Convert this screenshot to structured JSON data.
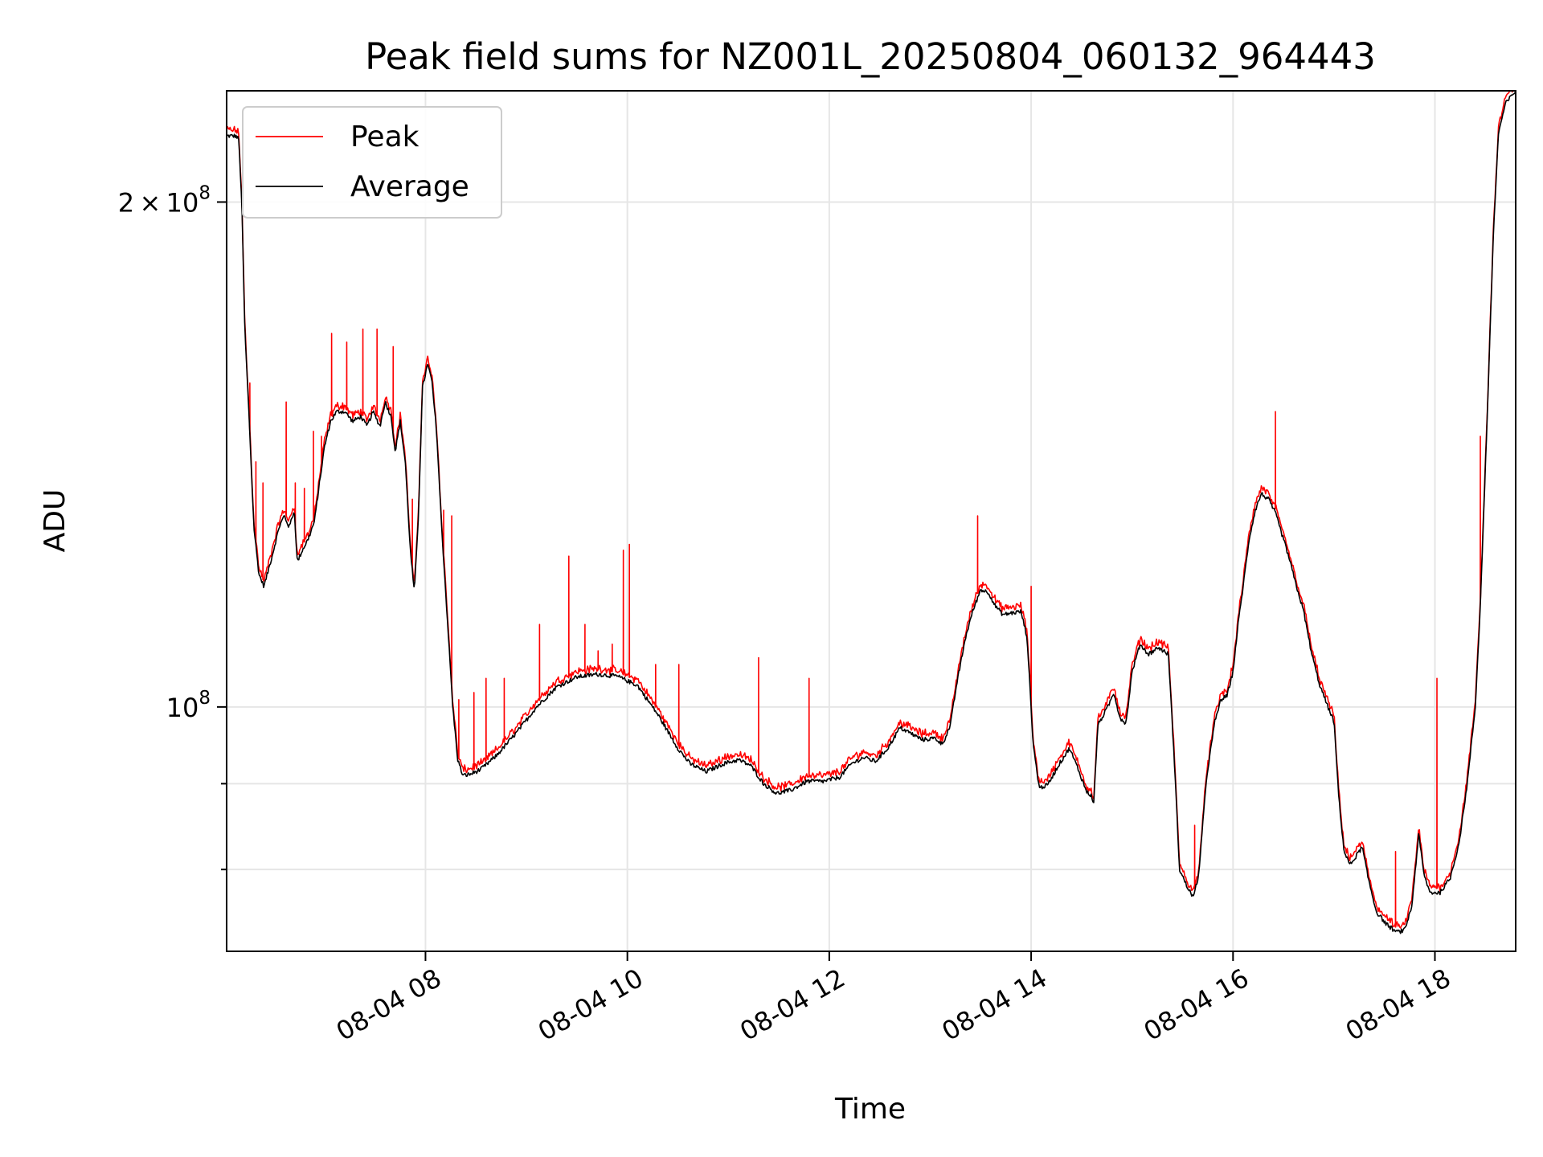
{
  "chart_data": {
    "type": "line",
    "title": "Peak field sums for NZ001L_20250804_060132_964443",
    "xlabel": "Time",
    "ylabel": "ADU",
    "x_tick_labels": [
      "08-04 08",
      "08-04 10",
      "08-04 12",
      "08-04 14",
      "08-04 16",
      "08-04 18"
    ],
    "x_tick_hours": [
      8,
      10,
      12,
      14,
      16,
      18
    ],
    "xlim_hours": [
      6.03,
      18.8
    ],
    "y_scale": "log",
    "ylim": [
      71500000,
      233000000
    ],
    "y_tick_values": [
      100000000,
      200000000
    ],
    "y_tick_labels": [
      "10^8",
      "2×10^8"
    ],
    "y_tick_mantissa": [
      "",
      "2"
    ],
    "y_tick_base": [
      "10",
      "10"
    ],
    "y_tick_exp": [
      "8",
      "8"
    ],
    "y_minor_ticks": [
      80000000,
      90000000
    ],
    "grid": true,
    "legend_position": "upper-left",
    "colors": {
      "peak": "#ff0000",
      "average": "#000000"
    },
    "series": [
      {
        "name": "Peak",
        "key": "peak",
        "color": "#ff0000",
        "spikes": [
          [
            6.26,
            156000000
          ],
          [
            6.32,
            140000000
          ],
          [
            6.39,
            136000000
          ],
          [
            6.62,
            152000000
          ],
          [
            6.71,
            136000000
          ],
          [
            6.8,
            135000000
          ],
          [
            6.89,
            146000000
          ],
          [
            6.97,
            145000000
          ],
          [
            7.07,
            167000000
          ],
          [
            7.22,
            165000000
          ],
          [
            7.38,
            168000000
          ],
          [
            7.52,
            168000000
          ],
          [
            7.68,
            164000000
          ],
          [
            7.87,
            133000000
          ],
          [
            8.18,
            131000000
          ],
          [
            8.26,
            130000000
          ],
          [
            8.33,
            101000000
          ],
          [
            8.48,
            102000000
          ],
          [
            8.6,
            104000000
          ],
          [
            8.78,
            104000000
          ],
          [
            9.13,
            112000000
          ],
          [
            9.42,
            123000000
          ],
          [
            9.58,
            112000000
          ],
          [
            9.71,
            108000000
          ],
          [
            9.85,
            109000000
          ],
          [
            9.96,
            124000000
          ],
          [
            10.02,
            125000000
          ],
          [
            10.28,
            106000000
          ],
          [
            10.51,
            106000000
          ],
          [
            11.3,
            107000000
          ],
          [
            11.8,
            104000000
          ],
          [
            13.47,
            130000000
          ],
          [
            14.0,
            118000000
          ],
          [
            15.62,
            85000000
          ],
          [
            16.42,
            150000000
          ],
          [
            18.02,
            104000000
          ],
          [
            18.45,
            145000000
          ],
          [
            17.61,
            82000000
          ]
        ]
      },
      {
        "name": "Average",
        "key": "average",
        "color": "#000000",
        "points": [
          [
            6.03,
            219000000
          ],
          [
            6.12,
            219000000
          ],
          [
            6.15,
            218000000
          ],
          [
            6.18,
            200000000
          ],
          [
            6.21,
            168000000
          ],
          [
            6.25,
            150000000
          ],
          [
            6.3,
            128000000
          ],
          [
            6.35,
            120000000
          ],
          [
            6.4,
            118000000
          ],
          [
            6.48,
            123000000
          ],
          [
            6.55,
            128000000
          ],
          [
            6.6,
            130000000
          ],
          [
            6.65,
            128000000
          ],
          [
            6.7,
            131000000
          ],
          [
            6.73,
            122000000
          ],
          [
            6.78,
            124000000
          ],
          [
            6.84,
            126000000
          ],
          [
            6.9,
            129000000
          ],
          [
            6.95,
            136000000
          ],
          [
            7.0,
            143000000
          ],
          [
            7.06,
            148000000
          ],
          [
            7.12,
            150000000
          ],
          [
            7.2,
            150000000
          ],
          [
            7.28,
            148000000
          ],
          [
            7.36,
            149000000
          ],
          [
            7.42,
            147000000
          ],
          [
            7.48,
            150000000
          ],
          [
            7.55,
            147000000
          ],
          [
            7.6,
            152000000
          ],
          [
            7.66,
            149000000
          ],
          [
            7.7,
            142000000
          ],
          [
            7.75,
            148000000
          ],
          [
            7.8,
            140000000
          ],
          [
            7.85,
            124000000
          ],
          [
            7.89,
            117000000
          ],
          [
            7.93,
            130000000
          ],
          [
            7.97,
            155000000
          ],
          [
            8.02,
            160000000
          ],
          [
            8.06,
            157000000
          ],
          [
            8.11,
            146000000
          ],
          [
            8.16,
            128000000
          ],
          [
            8.22,
            112000000
          ],
          [
            8.27,
            100000000
          ],
          [
            8.32,
            93000000
          ],
          [
            8.37,
            91000000
          ],
          [
            8.45,
            91200000
          ],
          [
            8.55,
            91800000
          ],
          [
            8.7,
            93500000
          ],
          [
            8.9,
            96500000
          ],
          [
            9.1,
            100000000
          ],
          [
            9.3,
            102800000
          ],
          [
            9.5,
            104200000
          ],
          [
            9.7,
            104600000
          ],
          [
            9.9,
            104300000
          ],
          [
            10.1,
            103000000
          ],
          [
            10.3,
            99000000
          ],
          [
            10.5,
            94500000
          ],
          [
            10.62,
            92500000
          ],
          [
            10.78,
            91500000
          ],
          [
            10.95,
            92500000
          ],
          [
            11.1,
            93000000
          ],
          [
            11.22,
            92300000
          ],
          [
            11.35,
            90000000
          ],
          [
            11.48,
            88800000
          ],
          [
            11.62,
            89200000
          ],
          [
            11.78,
            90300000
          ],
          [
            11.95,
            90300000
          ],
          [
            12.1,
            90800000
          ],
          [
            12.22,
            92500000
          ],
          [
            12.34,
            93300000
          ],
          [
            12.46,
            92800000
          ],
          [
            12.58,
            94500000
          ],
          [
            12.7,
            97200000
          ],
          [
            12.8,
            96500000
          ],
          [
            12.92,
            95600000
          ],
          [
            13.05,
            95800000
          ],
          [
            13.12,
            95000000
          ],
          [
            13.2,
            97500000
          ],
          [
            13.26,
            103000000
          ],
          [
            13.35,
            110000000
          ],
          [
            13.42,
            114000000
          ],
          [
            13.5,
            117500000
          ],
          [
            13.58,
            117000000
          ],
          [
            13.64,
            115000000
          ],
          [
            13.72,
            113500000
          ],
          [
            13.82,
            113800000
          ],
          [
            13.9,
            114000000
          ],
          [
            13.96,
            110000000
          ],
          [
            14.02,
            95000000
          ],
          [
            14.08,
            89500000
          ],
          [
            14.16,
            89800000
          ],
          [
            14.28,
            92500000
          ],
          [
            14.38,
            94500000
          ],
          [
            14.46,
            92000000
          ],
          [
            14.55,
            89000000
          ],
          [
            14.6,
            88500000
          ],
          [
            14.62,
            87500000
          ],
          [
            14.66,
            97500000
          ],
          [
            14.76,
            100000000
          ],
          [
            14.82,
            102000000
          ],
          [
            14.88,
            98500000
          ],
          [
            14.94,
            97800000
          ],
          [
            15.0,
            105000000
          ],
          [
            15.08,
            109000000
          ],
          [
            15.16,
            107500000
          ],
          [
            15.26,
            108500000
          ],
          [
            15.36,
            107500000
          ],
          [
            15.42,
            92500000
          ],
          [
            15.47,
            80000000
          ],
          [
            15.55,
            78000000
          ],
          [
            15.61,
            77000000
          ],
          [
            15.66,
            79500000
          ],
          [
            15.74,
            91000000
          ],
          [
            15.82,
            98000000
          ],
          [
            15.88,
            101000000
          ],
          [
            15.94,
            101500000
          ],
          [
            16.0,
            105000000
          ],
          [
            16.05,
            112000000
          ],
          [
            16.1,
            118000000
          ],
          [
            16.16,
            126000000
          ],
          [
            16.22,
            131000000
          ],
          [
            16.28,
            134000000
          ],
          [
            16.35,
            133000000
          ],
          [
            16.42,
            130500000
          ],
          [
            16.48,
            127000000
          ],
          [
            16.55,
            123000000
          ],
          [
            16.62,
            118500000
          ],
          [
            16.7,
            114000000
          ],
          [
            16.78,
            107500000
          ],
          [
            16.86,
            103000000
          ],
          [
            16.94,
            100000000
          ],
          [
            17.0,
            98000000
          ],
          [
            17.05,
            88000000
          ],
          [
            17.1,
            82000000
          ],
          [
            17.16,
            80500000
          ],
          [
            17.22,
            81500000
          ],
          [
            17.28,
            82500000
          ],
          [
            17.34,
            79000000
          ],
          [
            17.42,
            75500000
          ],
          [
            17.52,
            74200000
          ],
          [
            17.62,
            73400000
          ],
          [
            17.7,
            73600000
          ],
          [
            17.77,
            76000000
          ],
          [
            17.84,
            84000000
          ],
          [
            17.89,
            79500000
          ],
          [
            17.95,
            77500000
          ],
          [
            18.05,
            77500000
          ],
          [
            18.15,
            79000000
          ],
          [
            18.24,
            83000000
          ],
          [
            18.32,
            90000000
          ],
          [
            18.4,
            100000000
          ],
          [
            18.45,
            115000000
          ],
          [
            18.52,
            150000000
          ],
          [
            18.58,
            192000000
          ],
          [
            18.63,
            220000000
          ],
          [
            18.7,
            229000000
          ],
          [
            18.8,
            233000000
          ]
        ]
      }
    ]
  }
}
